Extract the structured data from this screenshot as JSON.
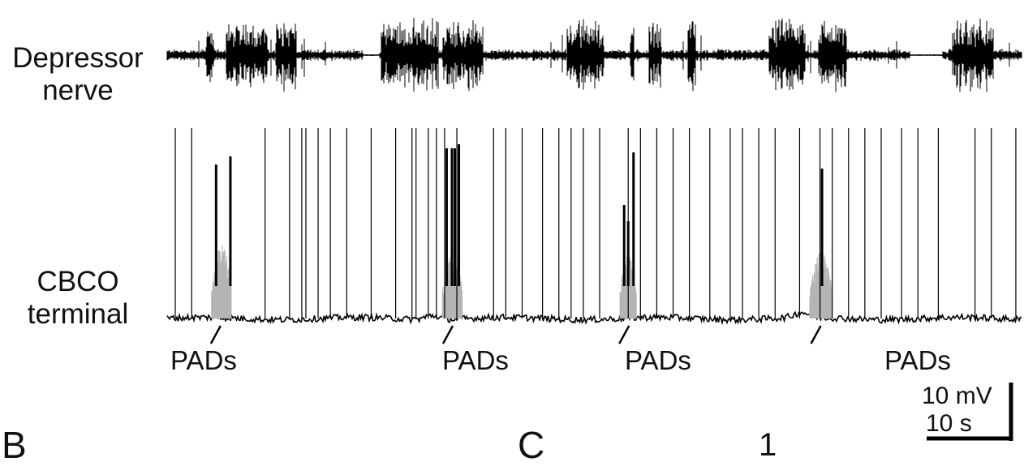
{
  "chart_data": {
    "type": "line",
    "series": [
      {
        "name": "Depressor nerve",
        "label": [
          "Depressor",
          "nerve"
        ],
        "bursts": [
          [
            0.095,
            0.115
          ],
          [
            0.145,
            0.245
          ],
          [
            0.265,
            0.315
          ],
          [
            0.525,
            0.665
          ],
          [
            0.675,
            0.775
          ],
          [
            0.98,
            1.07
          ],
          [
            1.135,
            1.145
          ],
          [
            1.18,
            1.21
          ],
          [
            1.275,
            1.295
          ],
          [
            1.475,
            1.565
          ],
          [
            1.595,
            1.665
          ],
          [
            1.925,
            2.025
          ]
        ],
        "tonic_gaps": [
          [
            0.48,
            0.52
          ],
          [
            1.82,
            1.9
          ]
        ]
      },
      {
        "name": "CBCO terminal",
        "label": [
          "CBCO",
          "terminal"
        ],
        "spike_times": [
          0.02,
          0.06,
          0.24,
          0.3,
          0.33,
          0.34,
          0.37,
          0.4,
          0.44,
          0.5,
          0.56,
          0.6,
          0.61,
          0.64,
          0.66,
          0.68,
          0.71,
          0.8,
          0.83,
          0.87,
          0.92,
          0.96,
          0.99,
          1.02,
          1.06,
          1.13,
          1.16,
          1.2,
          1.24,
          1.28,
          1.33,
          1.38,
          1.41,
          1.45,
          1.49,
          1.55,
          1.6,
          1.63,
          1.67,
          1.71,
          1.75,
          1.8,
          1.84,
          1.89,
          1.98,
          2.02,
          2.08
        ],
        "spike_height_mV": 47,
        "pad_bursts": [
          {
            "start": 0.109,
            "end": 0.157,
            "height_mV": 19,
            "large_spikes": [
              [
                0.12,
                38
              ],
              [
                0.155,
                40
              ]
            ]
          },
          {
            "start": 0.675,
            "end": 0.723,
            "height_mV": 17,
            "large_spikes": [
              [
                0.685,
                42
              ],
              [
                0.698,
                42
              ],
              [
                0.705,
                42
              ],
              [
                0.715,
                43
              ]
            ]
          },
          {
            "start": 1.11,
            "end": 1.15,
            "height_mV": 16,
            "large_spikes": [
              [
                1.12,
                28
              ],
              [
                1.13,
                24
              ],
              [
                1.143,
                41
              ]
            ]
          },
          {
            "start": 1.575,
            "end": 1.63,
            "height_mV": 17,
            "large_spikes": [
              [
                1.605,
                37
              ]
            ]
          }
        ],
        "baseline_bumps": [
          [
            0.65,
            1
          ],
          [
            1.555,
            1.2
          ]
        ],
        "trace_color": "#000000",
        "pad_color": "#b4b4b4"
      }
    ],
    "annotations": [
      "PADs",
      "PADs",
      "PADs",
      "PADs"
    ],
    "pad_marks": [
      0.129,
      0.698,
      1.13,
      1.6
    ],
    "scale_bar": {
      "y_value": 10,
      "y_unit": "mV",
      "x_value": 10,
      "x_unit": "s",
      "label_v": "10 mV",
      "label_h": "10 s"
    },
    "xlim": [
      0,
      2.1
    ],
    "ylim": [
      -8,
      47
    ]
  },
  "panels": {
    "b": "B",
    "c": "C"
  },
  "stray_text": "1",
  "colors": {
    "trace": "#000000",
    "pads": "#b4b4b4",
    "background": "#ffffff"
  }
}
